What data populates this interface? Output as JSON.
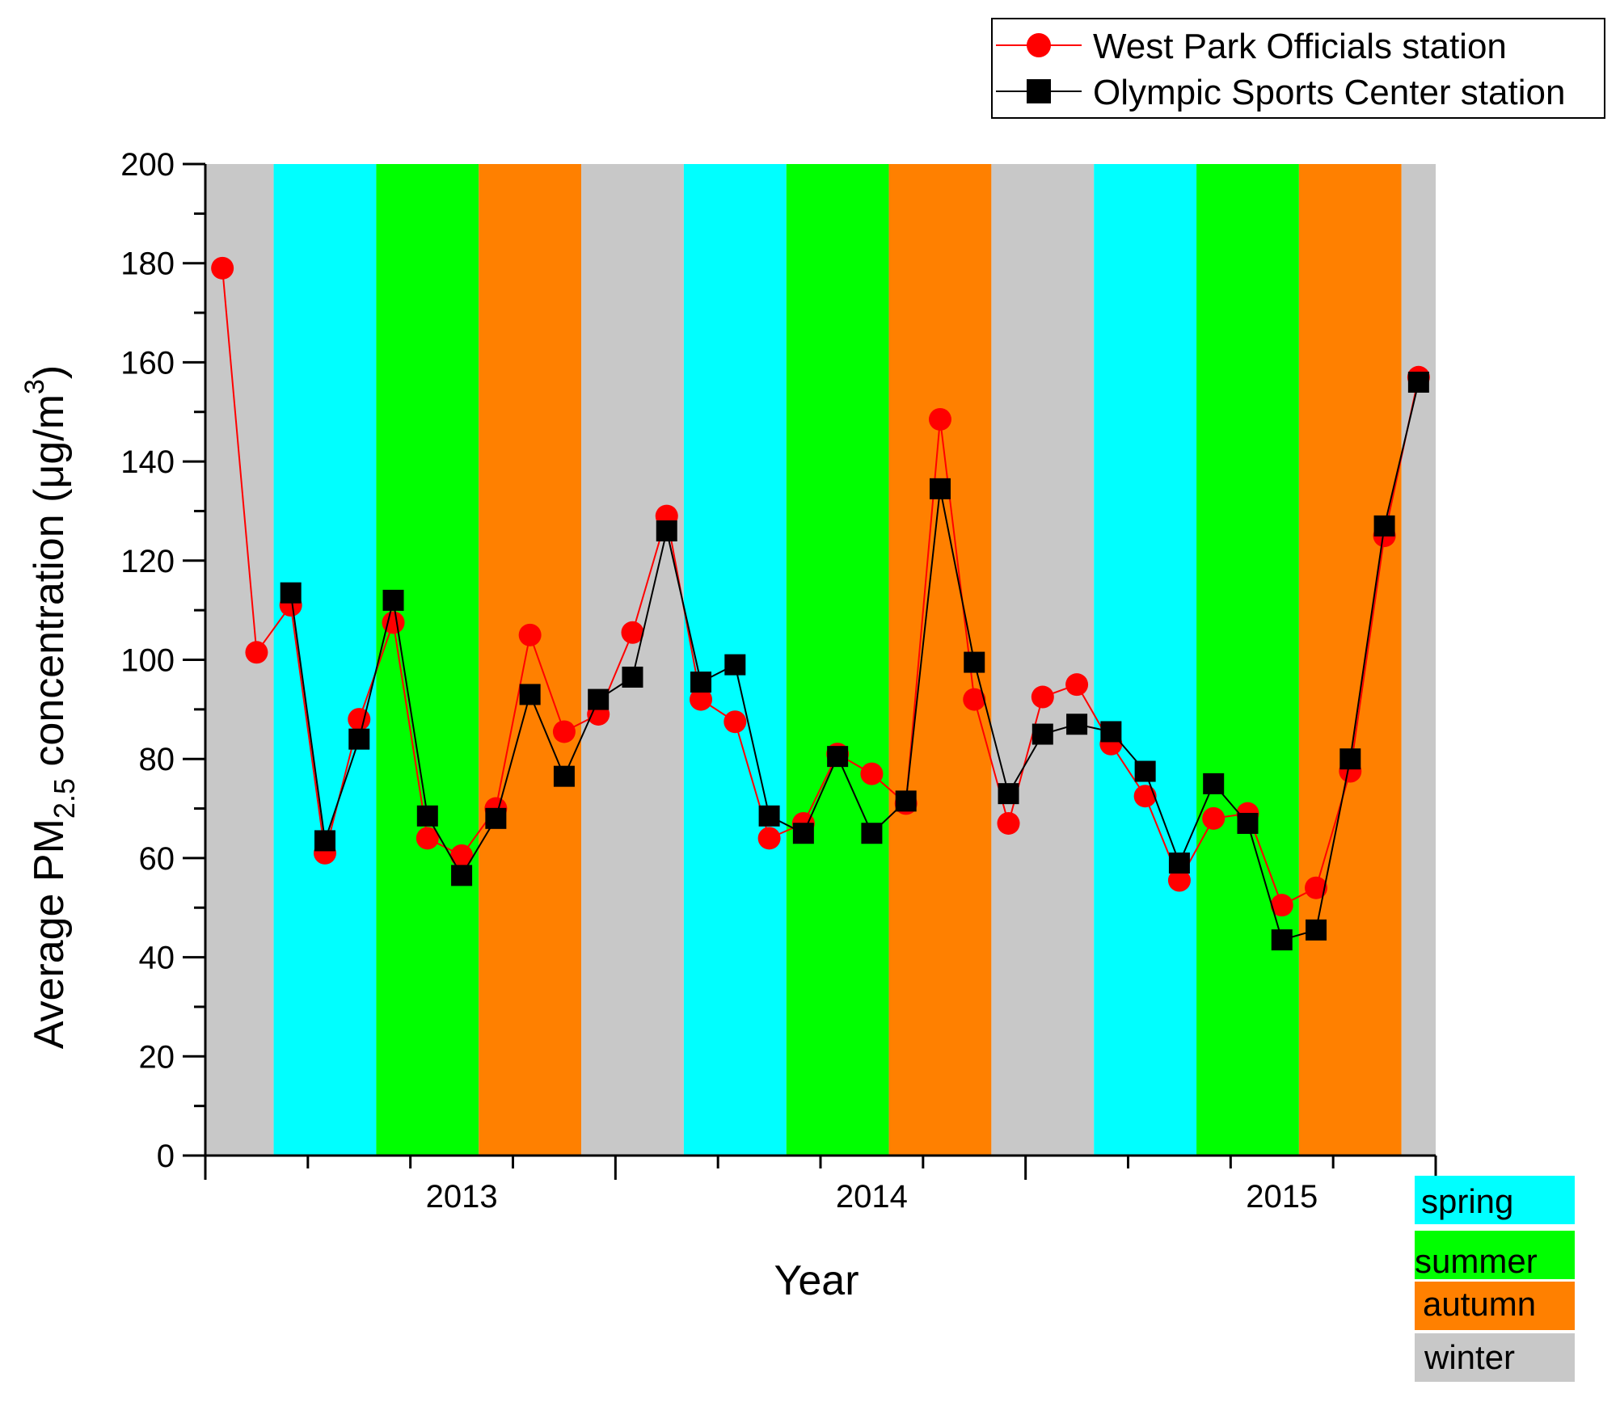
{
  "chart_data": {
    "type": "line",
    "xlabel": "Year",
    "ylabel": {
      "prefix": "Average PM",
      "subscript": "2.5",
      "middle": " concentration (μg/m",
      "superscript": "3",
      "suffix": ")"
    },
    "ylim": [
      0,
      200
    ],
    "yticks": [
      0,
      20,
      40,
      60,
      80,
      100,
      120,
      140,
      160,
      180,
      200
    ],
    "xlim": [
      0,
      36
    ],
    "year_ticks": [
      {
        "label": "2013",
        "x": 12
      },
      {
        "label": "2014",
        "x": 24
      },
      {
        "label": "2015",
        "x": 36
      }
    ],
    "x_tick_label_x": [
      7.5,
      19.5,
      31.5
    ],
    "season_bands": [
      {
        "season": "winter",
        "start": 0,
        "end": 2
      },
      {
        "season": "spring",
        "start": 2,
        "end": 5
      },
      {
        "season": "summer",
        "start": 5,
        "end": 8
      },
      {
        "season": "autumn",
        "start": 8,
        "end": 11
      },
      {
        "season": "winter",
        "start": 11,
        "end": 14
      },
      {
        "season": "spring",
        "start": 14,
        "end": 17
      },
      {
        "season": "summer",
        "start": 17,
        "end": 20
      },
      {
        "season": "autumn",
        "start": 20,
        "end": 23
      },
      {
        "season": "winter",
        "start": 23,
        "end": 26
      },
      {
        "season": "spring",
        "start": 26,
        "end": 29
      },
      {
        "season": "summer",
        "start": 29,
        "end": 32
      },
      {
        "season": "autumn",
        "start": 32,
        "end": 35
      },
      {
        "season": "winter",
        "start": 35,
        "end": 36
      }
    ],
    "season_legend": [
      {
        "label": "spring",
        "color": "#00FFFF"
      },
      {
        "label": "summer",
        "color": "#00FF00"
      },
      {
        "label": "autumn",
        "color": "#FF8000"
      },
      {
        "label": "winter",
        "color": "#C8C8C8"
      }
    ],
    "series": [
      {
        "name": "West Park Officials station",
        "color": "#FF0000",
        "marker": "circle",
        "x": [
          0.5,
          1.5,
          2.5,
          3.5,
          4.5,
          5.5,
          6.5,
          7.5,
          8.5,
          9.5,
          10.5,
          11.5,
          12.5,
          13.5,
          14.5,
          15.5,
          16.5,
          17.5,
          18.5,
          19.5,
          20.5,
          21.5,
          22.5,
          23.5,
          24.5,
          25.5,
          26.5,
          27.5,
          28.5,
          29.5,
          30.5,
          31.5,
          32.5,
          33.5,
          34.5,
          35.5
        ],
        "values": [
          179,
          101.5,
          111,
          61,
          88,
          107.5,
          64,
          60.5,
          70,
          105,
          85.5,
          89,
          105.5,
          129,
          92,
          87.5,
          64,
          67,
          81,
          77,
          71,
          148.5,
          92,
          67,
          92.5,
          95,
          83,
          72.5,
          55.5,
          68,
          69,
          50.5,
          54,
          77.5,
          125,
          157
        ]
      },
      {
        "name": "Olympic Sports Center station",
        "color": "#000000",
        "marker": "square",
        "x": [
          2.5,
          3.5,
          4.5,
          5.5,
          6.5,
          7.5,
          8.5,
          9.5,
          10.5,
          11.5,
          12.5,
          13.5,
          14.5,
          15.5,
          16.5,
          17.5,
          18.5,
          19.5,
          20.5,
          21.5,
          22.5,
          23.5,
          24.5,
          25.5,
          26.5,
          27.5,
          28.5,
          29.5,
          30.5,
          31.5,
          32.5,
          33.5,
          34.5,
          35.5
        ],
        "values": [
          113.5,
          63.5,
          84,
          112,
          68.5,
          56.5,
          68,
          93,
          76.5,
          92,
          96.5,
          126,
          95.5,
          99,
          68.5,
          65,
          80.5,
          65,
          71.5,
          134.5,
          99.5,
          73,
          85,
          87,
          85.5,
          77.5,
          59,
          75,
          67,
          43.5,
          45.5,
          80,
          127,
          156
        ]
      }
    ]
  }
}
